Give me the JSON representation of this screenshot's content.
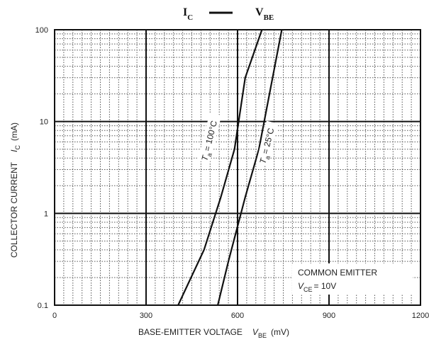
{
  "chart_data": {
    "type": "line",
    "title_left": "I",
    "title_left_sub": "C",
    "title_right": "V",
    "title_right_sub": "BE",
    "xlabel": "BASE-EMITTER VOLTAGE",
    "xlabel_symbol": "V",
    "xlabel_symbol_sub": "BE",
    "xlabel_unit": "(mV)",
    "ylabel": "COLLECTOR CURRENT",
    "ylabel_symbol": "I",
    "ylabel_symbol_sub": "C",
    "ylabel_unit": "(mA)",
    "xlim": [
      0,
      1200
    ],
    "ylim": [
      0.1,
      100
    ],
    "y_scale": "log",
    "x_ticks": [
      "0",
      "300",
      "600",
      "900",
      "1200"
    ],
    "y_ticks": [
      "0.1",
      "1",
      "10",
      "100"
    ],
    "grid": true,
    "series": [
      {
        "name_main": "T",
        "name_sub": "a",
        "name_rest": "= 100°C",
        "x": [
          405,
          490,
          545,
          590,
          625,
          680
        ],
        "y": [
          0.1,
          0.4,
          1.5,
          5,
          30,
          100
        ]
      },
      {
        "name_main": "T",
        "name_sub": "a",
        "name_rest": "= 25°C",
        "x": [
          535,
          570,
          625,
          670,
          715,
          745
        ],
        "y": [
          0.1,
          0.3,
          1.5,
          5,
          30,
          100
        ]
      }
    ],
    "annotation_line1": "COMMON EMITTER",
    "annotation_sym": "V",
    "annotation_sym_sub": "CE",
    "annotation_value": "= 10V"
  }
}
